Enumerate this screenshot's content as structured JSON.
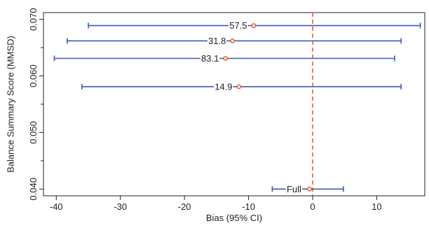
{
  "chart_data": {
    "type": "scatter",
    "xlabel": "Bias (95% CI)",
    "ylabel": "Balance Summary Score (MMSD)",
    "xlim": [
      -42,
      17.5
    ],
    "ylim": [
      0.0388,
      0.0712
    ],
    "x_ticks": [
      -40,
      -30,
      -20,
      -10,
      0,
      10
    ],
    "x_tick_labels": [
      "-40",
      "-30",
      "-20",
      "-10",
      "0",
      "10"
    ],
    "y_ticks": [
      0.04,
      0.05,
      0.06,
      0.07
    ],
    "y_tick_labels": [
      "0.040",
      "0.050",
      "0.060",
      "0.070"
    ],
    "y_minor_ticks": [
      0.045,
      0.055,
      0.065
    ],
    "grid": false,
    "reference_line": {
      "x": 0,
      "style": "dashed",
      "color": "#e8572a"
    },
    "colors": {
      "interval": "#3a5bb8",
      "point": "#e8572a",
      "axis": "#222222"
    },
    "points": [
      {
        "label": "57.5",
        "y": 0.0689,
        "estimate": -9.2,
        "ci_low": -35.0,
        "ci_high": 16.8
      },
      {
        "label": "31.8",
        "y": 0.0662,
        "estimate": -12.5,
        "ci_low": -38.3,
        "ci_high": 13.8
      },
      {
        "label": "83.1",
        "y": 0.0631,
        "estimate": -13.6,
        "ci_low": -40.3,
        "ci_high": 12.8
      },
      {
        "label": "14.9",
        "y": 0.0581,
        "estimate": -11.5,
        "ci_low": -36.0,
        "ci_high": 13.8
      },
      {
        "label": "Full",
        "y": 0.04,
        "estimate": -0.5,
        "ci_low": -6.3,
        "ci_high": 4.8
      }
    ]
  }
}
